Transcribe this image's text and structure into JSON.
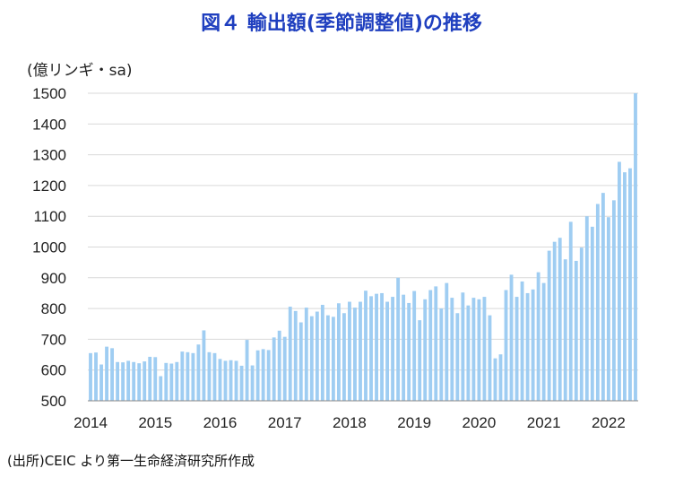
{
  "chart_data": {
    "type": "bar",
    "title": "図４ 輸出額(季節調整値)の推移",
    "ylabel": "(億リンギ・sa)",
    "source": "(出所)CEIC より第一生命経済研究所作成",
    "ylim": [
      500,
      1500
    ],
    "yticks": [
      500,
      600,
      700,
      800,
      900,
      1000,
      1100,
      1200,
      1300,
      1400,
      1500
    ],
    "xticks": [
      "2014",
      "2015",
      "2016",
      "2017",
      "2018",
      "2019",
      "2020",
      "2021",
      "2022"
    ],
    "grid": true,
    "legend": "none",
    "bar_color": "#9fcdf2",
    "x_start": "2014-01",
    "values": [
      655,
      657,
      618,
      676,
      671,
      626,
      625,
      630,
      626,
      622,
      628,
      643,
      642,
      580,
      623,
      621,
      626,
      660,
      658,
      655,
      683,
      729,
      658,
      655,
      636,
      630,
      632,
      630,
      614,
      698,
      615,
      664,
      668,
      665,
      706,
      728,
      708,
      806,
      792,
      755,
      803,
      775,
      790,
      812,
      778,
      773,
      817,
      785,
      822,
      803,
      822,
      858,
      840,
      848,
      850,
      822,
      838,
      900,
      845,
      818,
      857,
      762,
      830,
      860,
      872,
      800,
      883,
      835,
      785,
      852,
      810,
      835,
      830,
      838,
      778,
      638,
      651,
      860,
      910,
      838,
      888,
      850,
      862,
      918,
      883,
      988,
      1017,
      1030,
      960,
      1082,
      955,
      998,
      1100,
      1066,
      1140,
      1176,
      1097,
      1152,
      1277,
      1243,
      1256,
      1500
    ]
  }
}
